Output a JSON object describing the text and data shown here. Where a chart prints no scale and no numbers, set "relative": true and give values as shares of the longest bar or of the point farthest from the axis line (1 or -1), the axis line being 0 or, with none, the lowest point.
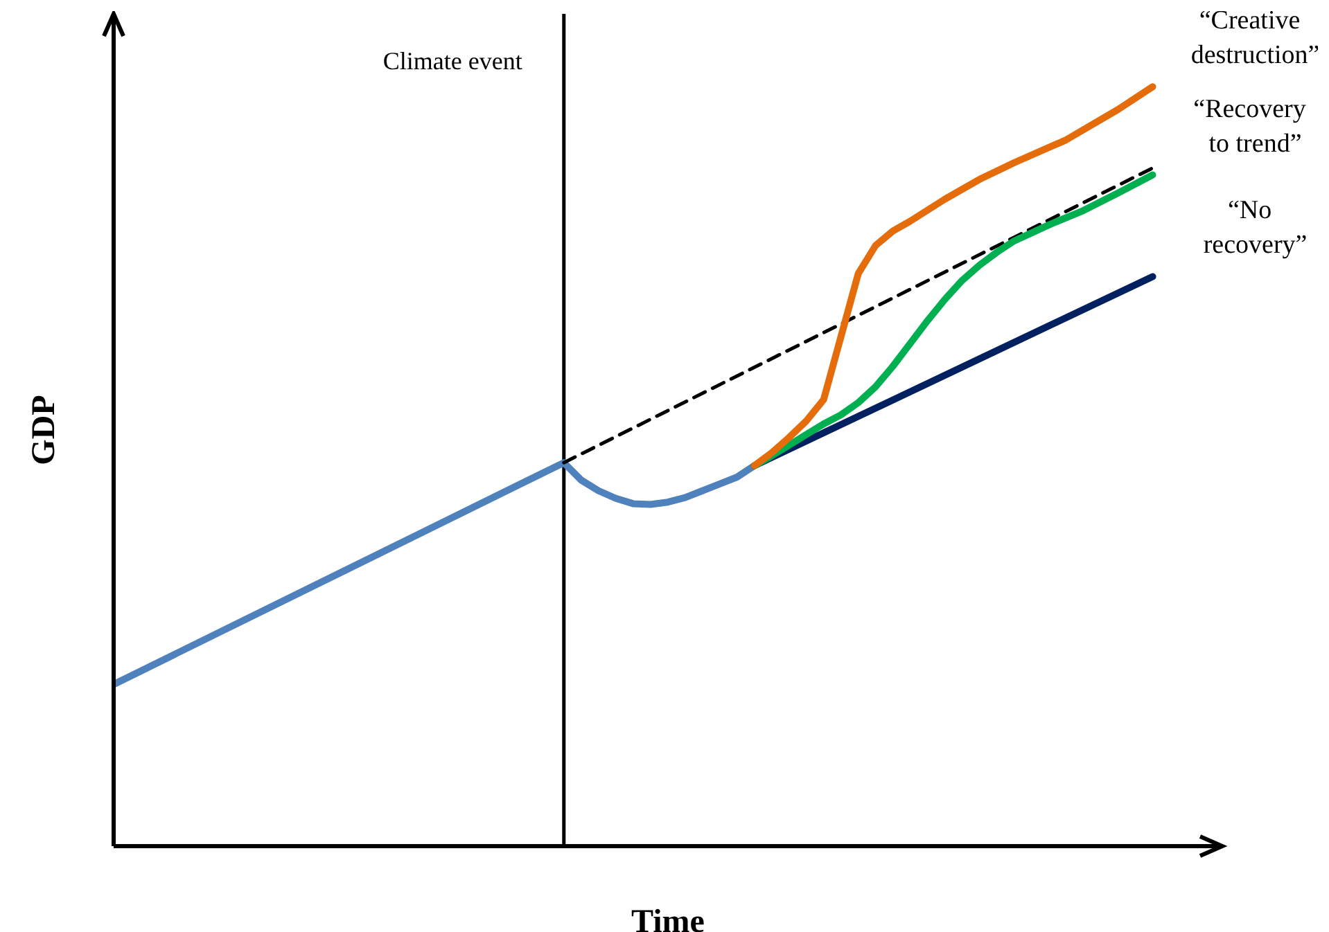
{
  "chart_data": {
    "type": "line",
    "relative": true,
    "xlabel": "Time",
    "ylabel": "GDP",
    "marker": "none",
    "categories": [
      null,
      null,
      null,
      null,
      null,
      null,
      null,
      null,
      null,
      null,
      null,
      null,
      null,
      null,
      null,
      null,
      null,
      null,
      null,
      null,
      null,
      null,
      null,
      null,
      null,
      null,
      null,
      null,
      null,
      null,
      null,
      null,
      null,
      null,
      null,
      null,
      null,
      null,
      null,
      null,
      null,
      null,
      null,
      null,
      null,
      null,
      null,
      null,
      null,
      null,
      null,
      null,
      null,
      null,
      null,
      null,
      null,
      null,
      null,
      null,
      null
    ],
    "annotations": [
      "Climate event"
    ],
    "series": [
      {
        "color": "#4f81bd",
        "line_style": "solid",
        "values": [
          0.213,
          null,
          null,
          null,
          null,
          null,
          null,
          null,
          null,
          null,
          null,
          null,
          null,
          null,
          null,
          null,
          null,
          null,
          null,
          null,
          null,
          null,
          null,
          null,
          null,
          null,
          0.505,
          0.482,
          0.468,
          0.458,
          0.451,
          0.45,
          0.453,
          0.459,
          0.468,
          0.477,
          0.486,
          0.501,
          null,
          null,
          null,
          null,
          null,
          null,
          null,
          null,
          null,
          null,
          null,
          null,
          null,
          null,
          null,
          null,
          null,
          null,
          null,
          null,
          null,
          null,
          null
        ]
      },
      {
        "color": "#000000",
        "line_style": "dashed",
        "values": [
          null,
          null,
          null,
          null,
          null,
          null,
          null,
          null,
          null,
          null,
          null,
          null,
          null,
          null,
          null,
          null,
          null,
          null,
          null,
          null,
          null,
          null,
          null,
          null,
          null,
          null,
          0.505,
          null,
          null,
          null,
          null,
          null,
          null,
          null,
          null,
          null,
          null,
          null,
          null,
          null,
          null,
          null,
          null,
          null,
          null,
          null,
          null,
          null,
          null,
          null,
          null,
          null,
          null,
          null,
          null,
          null,
          null,
          null,
          null,
          null,
          0.893
        ]
      },
      {
        "name": "“No recovery”",
        "color": "#002060",
        "line_style": "solid",
        "values": [
          null,
          null,
          null,
          null,
          null,
          null,
          null,
          null,
          null,
          null,
          null,
          null,
          null,
          null,
          null,
          null,
          null,
          null,
          null,
          null,
          null,
          null,
          null,
          null,
          null,
          null,
          null,
          null,
          null,
          null,
          null,
          null,
          null,
          null,
          null,
          null,
          null,
          0.501,
          null,
          null,
          null,
          null,
          null,
          null,
          null,
          null,
          null,
          null,
          null,
          null,
          null,
          null,
          null,
          null,
          null,
          null,
          null,
          null,
          null,
          null,
          0.75
        ]
      },
      {
        "name": "“Recovery to trend”",
        "color": "#00b050",
        "line_style": "solid",
        "values": [
          null,
          null,
          null,
          null,
          null,
          null,
          null,
          null,
          null,
          null,
          null,
          null,
          null,
          null,
          null,
          null,
          null,
          null,
          null,
          null,
          null,
          null,
          null,
          null,
          null,
          null,
          null,
          null,
          null,
          null,
          null,
          null,
          null,
          null,
          null,
          null,
          null,
          0.501,
          0.514,
          0.528,
          0.542,
          0.556,
          0.568,
          0.584,
          0.605,
          0.632,
          0.662,
          0.692,
          0.72,
          0.745,
          0.765,
          0.782,
          0.797,
          null,
          0.818,
          null,
          0.837,
          null,
          0.86,
          null,
          0.884
        ]
      },
      {
        "name": "“Creative destruction”",
        "color": "#e46c0a",
        "line_style": "solid",
        "values": [
          null,
          null,
          null,
          null,
          null,
          null,
          null,
          null,
          null,
          null,
          null,
          null,
          null,
          null,
          null,
          null,
          null,
          null,
          null,
          null,
          null,
          null,
          null,
          null,
          null,
          null,
          null,
          null,
          null,
          null,
          null,
          null,
          null,
          null,
          null,
          null,
          null,
          0.501,
          0.518,
          0.538,
          0.56,
          0.588,
          0.671,
          0.754,
          0.791,
          0.81,
          0.823,
          null,
          0.852,
          null,
          0.878,
          null,
          0.9,
          null,
          null,
          0.93,
          null,
          null,
          0.97,
          null,
          1
        ]
      }
    ]
  }
}
